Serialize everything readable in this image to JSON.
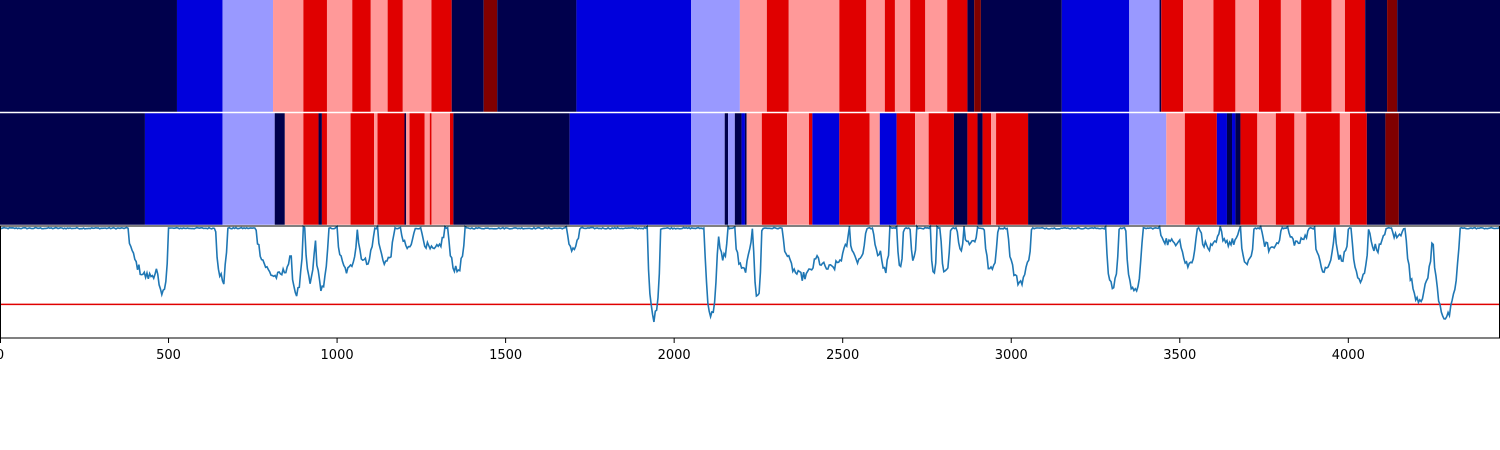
{
  "chart_data": {
    "type": "segmentation-strips-with-line",
    "xlim": [
      0,
      4450
    ],
    "x_ticks": [
      {
        "value": 0,
        "label": "0"
      },
      {
        "value": 500,
        "label": "500"
      },
      {
        "value": 1000,
        "label": "1000"
      },
      {
        "value": 1500,
        "label": "1500"
      },
      {
        "value": 2000,
        "label": "2000"
      },
      {
        "value": 2500,
        "label": "2500"
      },
      {
        "value": 3000,
        "label": "3000"
      },
      {
        "value": 3500,
        "label": "3500"
      },
      {
        "value": 4000,
        "label": "4000"
      }
    ],
    "class_colors": {
      "0": "#00004c",
      "1": "#0000dc",
      "2": "#9999ff",
      "3": "#ff9999",
      "4": "#e00000",
      "5": "#800000"
    },
    "strips": [
      {
        "segments": [
          [
            0,
            525,
            0
          ],
          [
            525,
            660,
            1
          ],
          [
            660,
            810,
            2
          ],
          [
            810,
            900,
            3
          ],
          [
            900,
            970,
            4
          ],
          [
            970,
            1045,
            3
          ],
          [
            1045,
            1100,
            4
          ],
          [
            1100,
            1150,
            3
          ],
          [
            1150,
            1195,
            4
          ],
          [
            1195,
            1280,
            3
          ],
          [
            1280,
            1340,
            4
          ],
          [
            1340,
            1435,
            0
          ],
          [
            1435,
            1475,
            5
          ],
          [
            1475,
            1710,
            0
          ],
          [
            1710,
            2050,
            1
          ],
          [
            2050,
            2195,
            2
          ],
          [
            2195,
            2275,
            3
          ],
          [
            2275,
            2340,
            4
          ],
          [
            2340,
            2490,
            3
          ],
          [
            2490,
            2570,
            4
          ],
          [
            2570,
            2625,
            3
          ],
          [
            2625,
            2655,
            4
          ],
          [
            2655,
            2700,
            3
          ],
          [
            2700,
            2745,
            4
          ],
          [
            2745,
            2810,
            3
          ],
          [
            2810,
            2870,
            4
          ],
          [
            2870,
            2890,
            0
          ],
          [
            2890,
            2910,
            5
          ],
          [
            2910,
            3150,
            0
          ],
          [
            3150,
            3350,
            1
          ],
          [
            3350,
            3440,
            2
          ],
          [
            3440,
            3445,
            0
          ],
          [
            3445,
            3510,
            4
          ],
          [
            3510,
            3600,
            3
          ],
          [
            3600,
            3665,
            4
          ],
          [
            3665,
            3735,
            3
          ],
          [
            3735,
            3800,
            4
          ],
          [
            3800,
            3860,
            3
          ],
          [
            3860,
            3950,
            4
          ],
          [
            3950,
            3990,
            3
          ],
          [
            3990,
            4050,
            4
          ],
          [
            4050,
            4115,
            0
          ],
          [
            4115,
            4145,
            5
          ],
          [
            4145,
            4450,
            0
          ]
        ]
      },
      {
        "segments": [
          [
            0,
            430,
            0
          ],
          [
            430,
            660,
            1
          ],
          [
            660,
            815,
            2
          ],
          [
            815,
            845,
            0
          ],
          [
            845,
            900,
            3
          ],
          [
            900,
            945,
            4
          ],
          [
            945,
            955,
            0
          ],
          [
            955,
            970,
            4
          ],
          [
            970,
            1040,
            3
          ],
          [
            1040,
            1110,
            4
          ],
          [
            1110,
            1120,
            3
          ],
          [
            1120,
            1200,
            4
          ],
          [
            1200,
            1205,
            0
          ],
          [
            1205,
            1215,
            3
          ],
          [
            1215,
            1260,
            4
          ],
          [
            1260,
            1275,
            3
          ],
          [
            1275,
            1280,
            4
          ],
          [
            1280,
            1335,
            3
          ],
          [
            1335,
            1345,
            4
          ],
          [
            1345,
            1690,
            0
          ],
          [
            1690,
            2050,
            1
          ],
          [
            2050,
            2150,
            2
          ],
          [
            2150,
            2160,
            0
          ],
          [
            2160,
            2180,
            2
          ],
          [
            2180,
            2200,
            0
          ],
          [
            2200,
            2210,
            1
          ],
          [
            2210,
            2215,
            0
          ],
          [
            2215,
            2260,
            3
          ],
          [
            2260,
            2335,
            4
          ],
          [
            2335,
            2400,
            3
          ],
          [
            2400,
            2410,
            4
          ],
          [
            2410,
            2490,
            1
          ],
          [
            2490,
            2580,
            4
          ],
          [
            2580,
            2610,
            3
          ],
          [
            2610,
            2660,
            1
          ],
          [
            2660,
            2715,
            4
          ],
          [
            2715,
            2755,
            3
          ],
          [
            2755,
            2830,
            4
          ],
          [
            2830,
            2870,
            0
          ],
          [
            2870,
            2900,
            4
          ],
          [
            2900,
            2915,
            0
          ],
          [
            2915,
            2940,
            4
          ],
          [
            2940,
            2955,
            3
          ],
          [
            2955,
            3050,
            4
          ],
          [
            3050,
            3150,
            0
          ],
          [
            3150,
            3350,
            1
          ],
          [
            3350,
            3460,
            2
          ],
          [
            3460,
            3515,
            3
          ],
          [
            3515,
            3610,
            4
          ],
          [
            3610,
            3640,
            1
          ],
          [
            3640,
            3655,
            0
          ],
          [
            3655,
            3665,
            1
          ],
          [
            3665,
            3680,
            0
          ],
          [
            3680,
            3730,
            4
          ],
          [
            3730,
            3785,
            3
          ],
          [
            3785,
            3840,
            4
          ],
          [
            3840,
            3875,
            3
          ],
          [
            3875,
            3975,
            4
          ],
          [
            3975,
            4005,
            3
          ],
          [
            4005,
            4055,
            4
          ],
          [
            4055,
            4110,
            0
          ],
          [
            4110,
            4150,
            5
          ],
          [
            4150,
            4450,
            0
          ]
        ]
      }
    ],
    "line_panel": {
      "ylim": [
        0,
        1
      ],
      "threshold": 0.3,
      "threshold_color": "#e00000",
      "line_color": "#1f77b4",
      "baseline": 0.98,
      "dips": [
        [
          380,
          500,
          0.55
        ],
        [
          420,
          480,
          0.72
        ],
        [
          460,
          500,
          0.38
        ],
        [
          640,
          675,
          0.55
        ],
        [
          655,
          670,
          0.45
        ],
        [
          760,
          880,
          0.55
        ],
        [
          800,
          860,
          0.62
        ],
        [
          840,
          880,
          0.72
        ],
        [
          860,
          900,
          0.4
        ],
        [
          905,
          935,
          0.5
        ],
        [
          935,
          975,
          0.45
        ],
        [
          1000,
          1060,
          0.6
        ],
        [
          1060,
          1110,
          0.68
        ],
        [
          1120,
          1170,
          0.68
        ],
        [
          1190,
          1230,
          0.8
        ],
        [
          1250,
          1320,
          0.78
        ],
        [
          1330,
          1380,
          0.6
        ],
        [
          1680,
          1720,
          0.8
        ],
        [
          1920,
          1960,
          0.18
        ],
        [
          2090,
          2130,
          0.2
        ],
        [
          2130,
          2160,
          0.72
        ],
        [
          2180,
          2230,
          0.6
        ],
        [
          2235,
          2260,
          0.35
        ],
        [
          2320,
          2440,
          0.55
        ],
        [
          2400,
          2520,
          0.62
        ],
        [
          2440,
          2460,
          0.9
        ],
        [
          2520,
          2570,
          0.7
        ],
        [
          2590,
          2620,
          0.75
        ],
        [
          2610,
          2640,
          0.6
        ],
        [
          2660,
          2680,
          0.65
        ],
        [
          2700,
          2720,
          0.7
        ],
        [
          2760,
          2780,
          0.55
        ],
        [
          2790,
          2820,
          0.6
        ],
        [
          2840,
          2860,
          0.8
        ],
        [
          2860,
          2900,
          0.85
        ],
        [
          2920,
          2960,
          0.6
        ],
        [
          2990,
          3060,
          0.5
        ],
        [
          3280,
          3320,
          0.45
        ],
        [
          3340,
          3390,
          0.4
        ],
        [
          3440,
          3510,
          0.85
        ],
        [
          3500,
          3550,
          0.65
        ],
        [
          3560,
          3620,
          0.8
        ],
        [
          3620,
          3680,
          0.85
        ],
        [
          3680,
          3720,
          0.65
        ],
        [
          3740,
          3800,
          0.8
        ],
        [
          3820,
          3880,
          0.85
        ],
        [
          3900,
          3960,
          0.6
        ],
        [
          3960,
          4000,
          0.7
        ],
        [
          4010,
          4060,
          0.5
        ],
        [
          4060,
          4110,
          0.8
        ],
        [
          4130,
          4160,
          0.9
        ],
        [
          4170,
          4250,
          0.35
        ],
        [
          4250,
          4330,
          0.18
        ]
      ]
    }
  }
}
